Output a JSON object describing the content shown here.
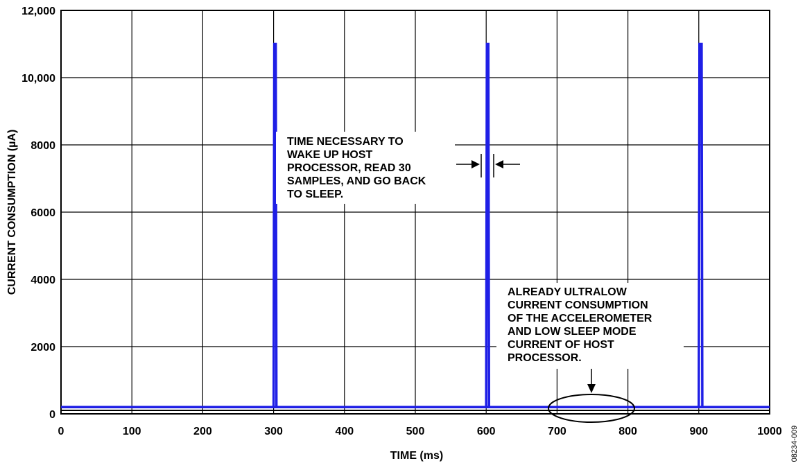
{
  "chart_data": {
    "type": "line",
    "title": "",
    "xlabel": "TIME (ms)",
    "ylabel": "CURRENT CONSUMPTION (µA)",
    "xlim": [
      0,
      1000
    ],
    "ylim": [
      0,
      12000
    ],
    "x_ticks": [
      0,
      100,
      200,
      300,
      400,
      500,
      600,
      700,
      800,
      900,
      1000
    ],
    "y_ticks": [
      0,
      2000,
      4000,
      6000,
      8000,
      10000,
      12000
    ],
    "x_tick_labels": [
      "0",
      "100",
      "200",
      "300",
      "400",
      "500",
      "600",
      "700",
      "800",
      "900",
      "1000"
    ],
    "y_tick_labels": [
      "0",
      "2000",
      "4000",
      "6000",
      "8000",
      "10,000",
      "12,000"
    ],
    "grid": true,
    "series": [
      {
        "color": "#1f1fe6",
        "x": [
          0,
          300,
          301,
          303,
          304,
          1000
        ],
        "y": [
          200,
          200,
          11000,
          11000,
          200,
          200
        ],
        "x2": [
          600,
          601,
          603,
          604
        ],
        "y2": [
          200,
          11000,
          11000,
          200
        ],
        "x3": [
          900,
          901,
          904,
          905
        ],
        "y3": [
          200,
          11000,
          11000,
          200
        ]
      }
    ],
    "annotations": [
      {
        "lines": [
          "TIME NECESSARY TO",
          "WAKE UP HOST",
          "PROCESSOR, READ 30",
          "SAMPLES, AND GO BACK",
          "TO SLEEP."
        ]
      },
      {
        "lines": [
          "ALREADY ULTRALOW",
          "CURRENT CONSUMPTION",
          "OF THE ACCELEROMETER",
          "AND LOW SLEEP MODE",
          "CURRENT OF HOST",
          "PROCESSOR."
        ]
      }
    ],
    "figure_id": "08234-009"
  }
}
